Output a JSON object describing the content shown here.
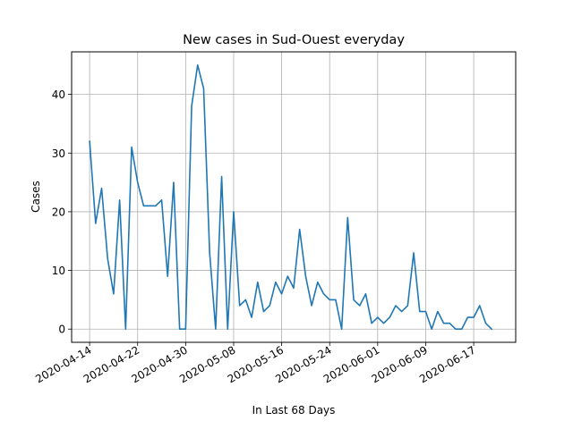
{
  "chart_data": {
    "type": "line",
    "title": "New cases in Sud-Ouest everyday",
    "xlabel": "In Last 68 Days",
    "ylabel": "Cases",
    "grid": true,
    "line_color": "#1f77b4",
    "x_start": "2020-04-14",
    "x_ticks": [
      "2020-04-14",
      "2020-04-22",
      "2020-04-30",
      "2020-05-08",
      "2020-05-16",
      "2020-05-24",
      "2020-06-01",
      "2020-06-09",
      "2020-06-17"
    ],
    "y_ticks": [
      0,
      10,
      20,
      30,
      40
    ],
    "xlim": [
      "2020-04-11",
      "2020-06-24"
    ],
    "ylim": [
      -2.25,
      47.25
    ],
    "series": [
      {
        "x": [
          "2020-04-14",
          "2020-04-15",
          "2020-04-16",
          "2020-04-17",
          "2020-04-18",
          "2020-04-19",
          "2020-04-20",
          "2020-04-21",
          "2020-04-22",
          "2020-04-23",
          "2020-04-24",
          "2020-04-25",
          "2020-04-26",
          "2020-04-27",
          "2020-04-28",
          "2020-04-29",
          "2020-04-30",
          "2020-05-01",
          "2020-05-02",
          "2020-05-03",
          "2020-05-04",
          "2020-05-05",
          "2020-05-06",
          "2020-05-07",
          "2020-05-08",
          "2020-05-09",
          "2020-05-10",
          "2020-05-11",
          "2020-05-12",
          "2020-05-13",
          "2020-05-14",
          "2020-05-15",
          "2020-05-16",
          "2020-05-17",
          "2020-05-18",
          "2020-05-19",
          "2020-05-20",
          "2020-05-21",
          "2020-05-22",
          "2020-05-23",
          "2020-05-24",
          "2020-05-25",
          "2020-05-26",
          "2020-05-27",
          "2020-05-28",
          "2020-05-29",
          "2020-05-30",
          "2020-05-31",
          "2020-06-01",
          "2020-06-02",
          "2020-06-03",
          "2020-06-04",
          "2020-06-05",
          "2020-06-06",
          "2020-06-07",
          "2020-06-08",
          "2020-06-09",
          "2020-06-10",
          "2020-06-11",
          "2020-06-12",
          "2020-06-13",
          "2020-06-14",
          "2020-06-15",
          "2020-06-16",
          "2020-06-17",
          "2020-06-18",
          "2020-06-19",
          "2020-06-20"
        ],
        "values": [
          32,
          18,
          24,
          12,
          6,
          22,
          0,
          31,
          25,
          21,
          21,
          21,
          22,
          9,
          25,
          0,
          0,
          38,
          45,
          41,
          13,
          0,
          26,
          0,
          20,
          4,
          5,
          2,
          8,
          3,
          4,
          8,
          6,
          9,
          7,
          17,
          9,
          4,
          8,
          6,
          5,
          5,
          0,
          19,
          5,
          4,
          6,
          1,
          2,
          1,
          2,
          4,
          3,
          4,
          13,
          3,
          3,
          0,
          3,
          1,
          1,
          0,
          0,
          2,
          2,
          4,
          1,
          0
        ]
      }
    ]
  }
}
